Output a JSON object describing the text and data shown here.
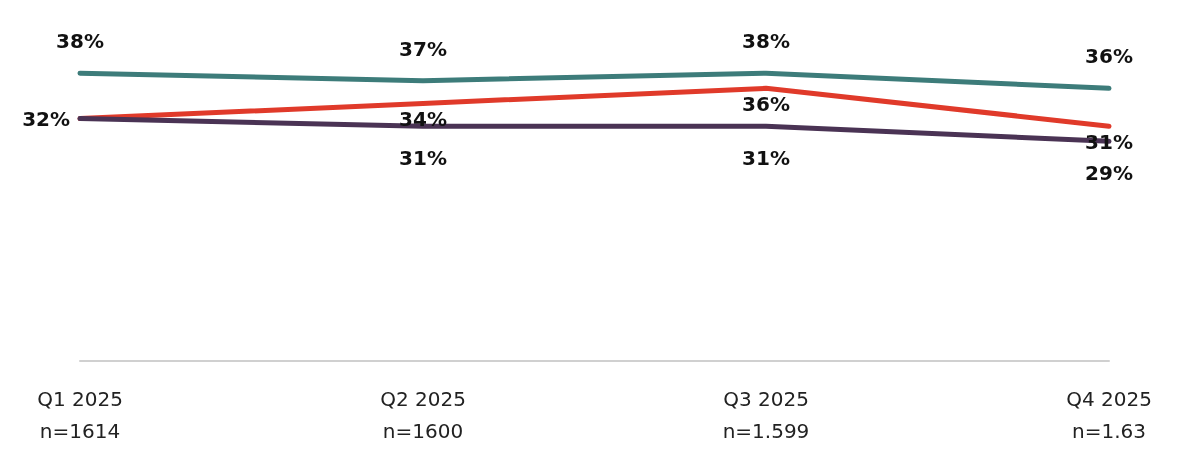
{
  "chart_data": {
    "type": "line",
    "categories": [
      "Q1 2025\nn=1614",
      "Q2 2025\nn=1600",
      "Q3 2025\nn=1.599",
      "Q4 2025\nn=1.63"
    ],
    "series": [
      {
        "color": "#3d7c7a",
        "values": [
          38,
          37,
          38,
          36
        ],
        "value_labels": [
          "38%",
          "37%",
          "38%",
          "36%"
        ]
      },
      {
        "color": "#e03a2a",
        "values": [
          32,
          34,
          36,
          31
        ],
        "value_labels": [
          "32%",
          "34%",
          "36%",
          "31%"
        ]
      },
      {
        "color": "#4a3354",
        "values": [
          32,
          31,
          31,
          29
        ],
        "value_labels": [
          null,
          "31%",
          "31%",
          "29%"
        ]
      }
    ],
    "tick_labels": "x",
    "grid": false,
    "marker": "none",
    "line_style": "solid"
  }
}
